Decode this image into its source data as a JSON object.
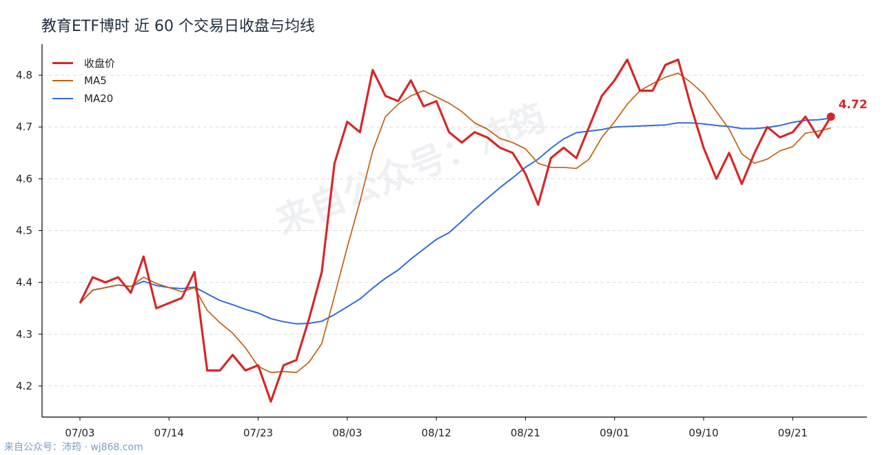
{
  "title": "教育ETF博时 近 60 个交易日收盘与均线",
  "watermark": "来自公众号：沛筠",
  "footer": "来自公众号：沛筠 · wj868.com",
  "colors": {
    "close": "#d62728",
    "ma5": "#c0610e",
    "ma20": "#2f6bdc"
  },
  "chart_data": {
    "type": "line",
    "title": "教育ETF博时 近 60 个交易日收盘与均线",
    "xlabel": "",
    "ylabel": "",
    "ylim": [
      4.14,
      4.86
    ],
    "yticks": [
      4.2,
      4.3,
      4.4,
      4.5,
      4.6,
      4.7,
      4.8
    ],
    "xtick_labels": [
      "07/03",
      "07/14",
      "07/23",
      "08/03",
      "08/12",
      "08/21",
      "09/01",
      "09/10",
      "09/21"
    ],
    "xtick_index": [
      0,
      7,
      14,
      21,
      28,
      35,
      42,
      49,
      56
    ],
    "grid": "horizontal dashed",
    "legend_position": "top-left",
    "last_value_label": "4.72",
    "series": [
      {
        "name": "收盘价",
        "key": "close",
        "values": [
          4.36,
          4.41,
          4.4,
          4.41,
          4.38,
          4.45,
          4.35,
          4.36,
          4.37,
          4.42,
          4.23,
          4.23,
          4.26,
          4.23,
          4.24,
          4.17,
          4.24,
          4.25,
          4.33,
          4.42,
          4.63,
          4.71,
          4.69,
          4.81,
          4.76,
          4.75,
          4.79,
          4.74,
          4.75,
          4.69,
          4.67,
          4.69,
          4.68,
          4.66,
          4.65,
          4.61,
          4.55,
          4.64,
          4.66,
          4.64,
          4.7,
          4.76,
          4.79,
          4.83,
          4.77,
          4.77,
          4.82,
          4.83,
          4.74,
          4.66,
          4.6,
          4.65,
          4.59,
          4.65,
          4.7,
          4.68,
          4.69,
          4.72,
          4.68,
          4.72
        ]
      },
      {
        "name": "MA5",
        "key": "ma5",
        "values": [
          4.36,
          4.385,
          4.39,
          4.395,
          4.392,
          4.41,
          4.398,
          4.39,
          4.382,
          4.39,
          4.346,
          4.322,
          4.302,
          4.274,
          4.238,
          4.226,
          4.228,
          4.226,
          4.246,
          4.282,
          4.374,
          4.468,
          4.556,
          4.654,
          4.72,
          4.744,
          4.76,
          4.77,
          4.758,
          4.746,
          4.73,
          4.708,
          4.696,
          4.678,
          4.67,
          4.658,
          4.63,
          4.622,
          4.622,
          4.62,
          4.638,
          4.68,
          4.71,
          4.744,
          4.77,
          4.784,
          4.796,
          4.804,
          4.786,
          4.764,
          4.73,
          4.696,
          4.648,
          4.63,
          4.638,
          4.654,
          4.662,
          4.688,
          4.692,
          4.698
        ]
      },
      {
        "name": "MA20",
        "key": "ma20",
        "values": [
          4.36,
          4.385,
          4.39,
          4.395,
          4.392,
          4.402,
          4.394,
          4.39,
          4.388,
          4.391,
          4.378,
          4.365,
          4.357,
          4.348,
          4.341,
          4.33,
          4.324,
          4.32,
          4.321,
          4.325,
          4.338,
          4.353,
          4.368,
          4.389,
          4.408,
          4.424,
          4.445,
          4.464,
          4.483,
          4.496,
          4.518,
          4.541,
          4.562,
          4.583,
          4.602,
          4.622,
          4.638,
          4.659,
          4.677,
          4.689,
          4.692,
          4.695,
          4.7,
          4.701,
          4.702,
          4.703,
          4.704,
          4.708,
          4.708,
          4.706,
          4.703,
          4.701,
          4.697,
          4.697,
          4.699,
          4.703,
          4.709,
          4.713,
          4.714,
          4.717
        ]
      }
    ]
  }
}
